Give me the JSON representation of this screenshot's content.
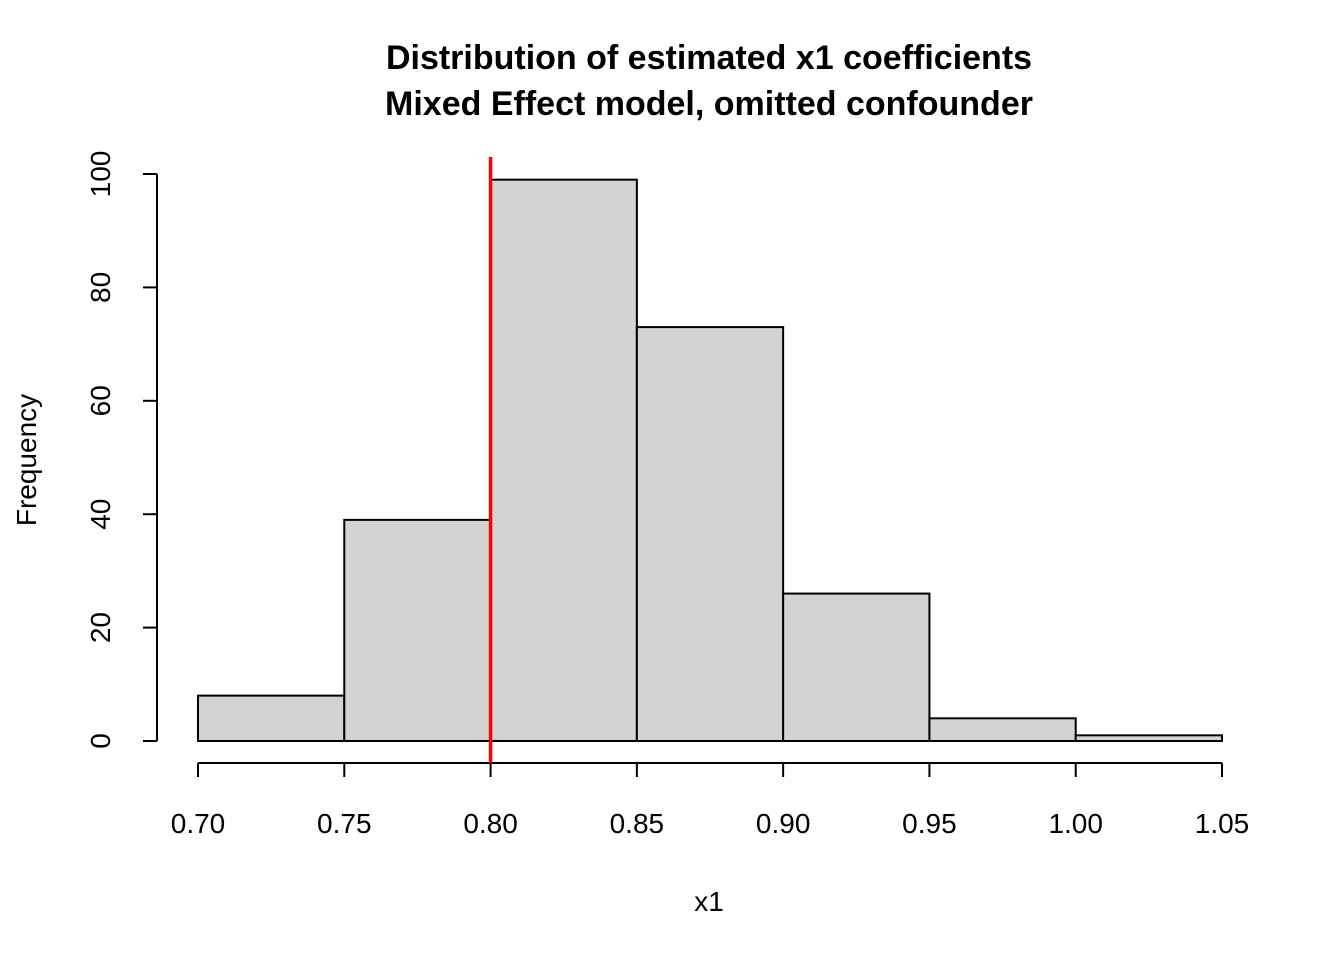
{
  "chart_data": {
    "type": "bar",
    "subtype": "histogram",
    "title": "Distribution of estimated x1 coefficients",
    "subtitle": "Mixed Effect model, omitted confounder",
    "xlabel": "x1",
    "ylabel": "Frequency",
    "bin_edges": [
      0.7,
      0.75,
      0.8,
      0.85,
      0.9,
      0.95,
      1.0,
      1.05
    ],
    "values": [
      8,
      39,
      99,
      73,
      26,
      4,
      1
    ],
    "xlim": [
      0.7,
      1.05
    ],
    "ylim": [
      0,
      100
    ],
    "x_ticks": [
      "0.70",
      "0.75",
      "0.80",
      "0.85",
      "0.90",
      "0.95",
      "1.00",
      "1.05"
    ],
    "y_ticks": [
      "0",
      "20",
      "40",
      "60",
      "80",
      "100"
    ],
    "bar_color": "#d3d3d3",
    "reference_line": {
      "x": 0.8,
      "color": "#ff0000"
    },
    "grid": false
  }
}
